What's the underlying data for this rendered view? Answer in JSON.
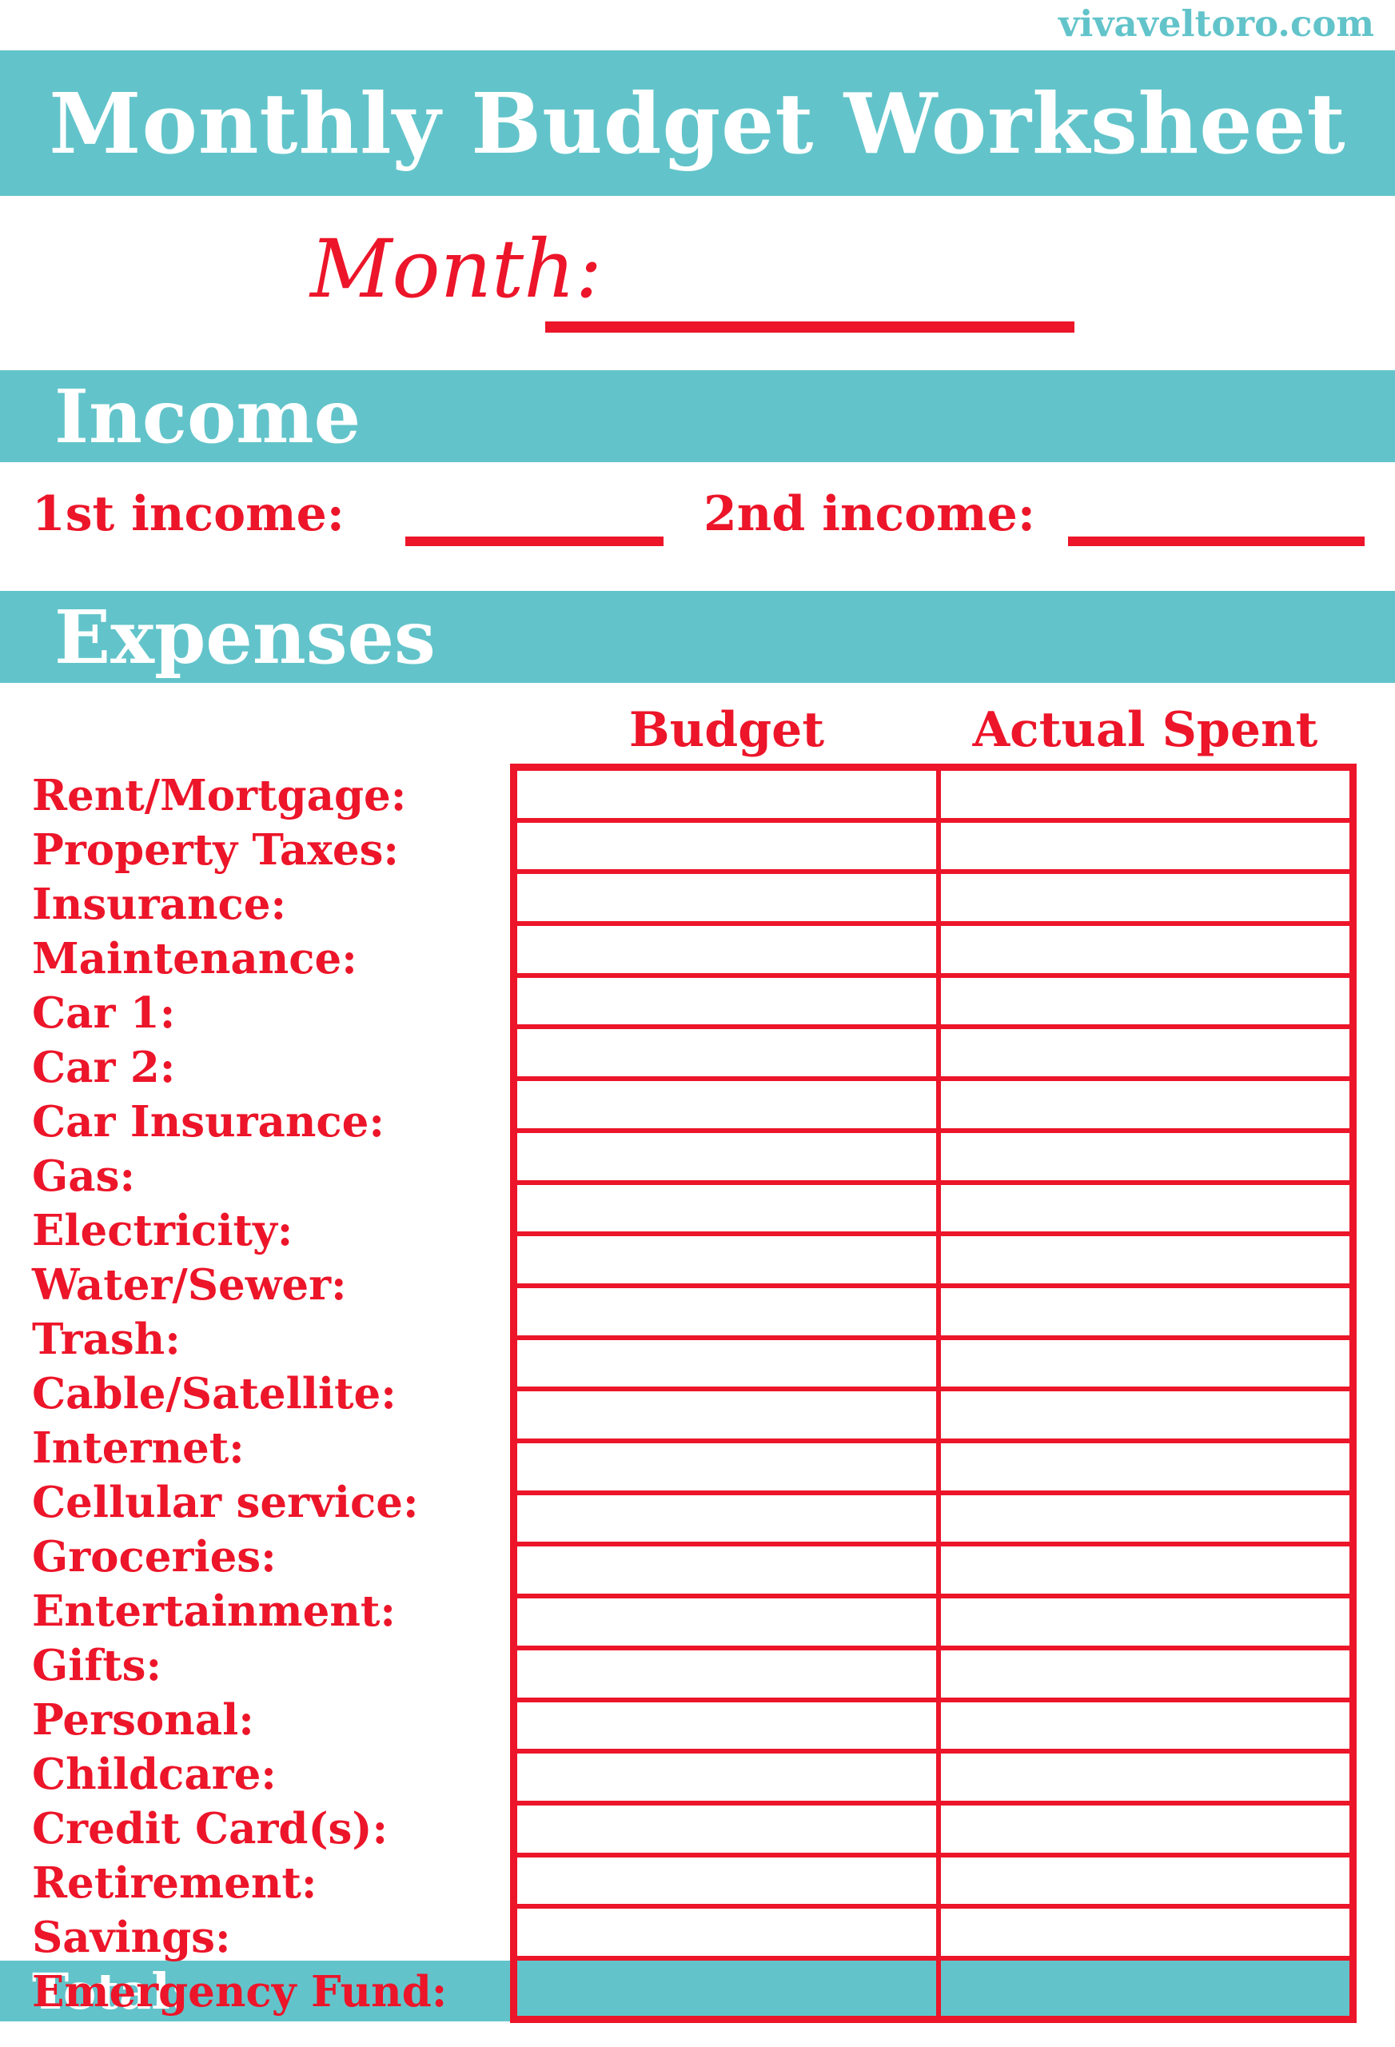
{
  "site_credit": "vivaveltoro.com",
  "title": "Monthly Budget Worksheet",
  "month": {
    "label": "Month:"
  },
  "income": {
    "header": "Income",
    "fields": [
      {
        "label": "1st income:"
      },
      {
        "label": "2nd income:"
      }
    ]
  },
  "expenses": {
    "header": "Expenses",
    "columns": [
      "Budget",
      "Actual Spent"
    ],
    "items": [
      "Rent/Mortgage:",
      "Property Taxes:",
      "Insurance:",
      "Maintenance:",
      "Car 1:",
      "Car 2:",
      "Car Insurance:",
      "Gas:",
      "Electricity:",
      "Water/Sewer:",
      "Trash:",
      "Cable/Satellite:",
      "Internet:",
      "Cellular service:",
      "Groceries:",
      "Entertainment:",
      "Gifts:",
      "Personal:",
      "Childcare:",
      "Credit Card(s):",
      "Retirement:",
      "Savings:",
      "Emergency Fund:"
    ],
    "total_label": "Total:"
  },
  "colors": {
    "teal": "#62c4ca",
    "red": "#ec1529"
  }
}
